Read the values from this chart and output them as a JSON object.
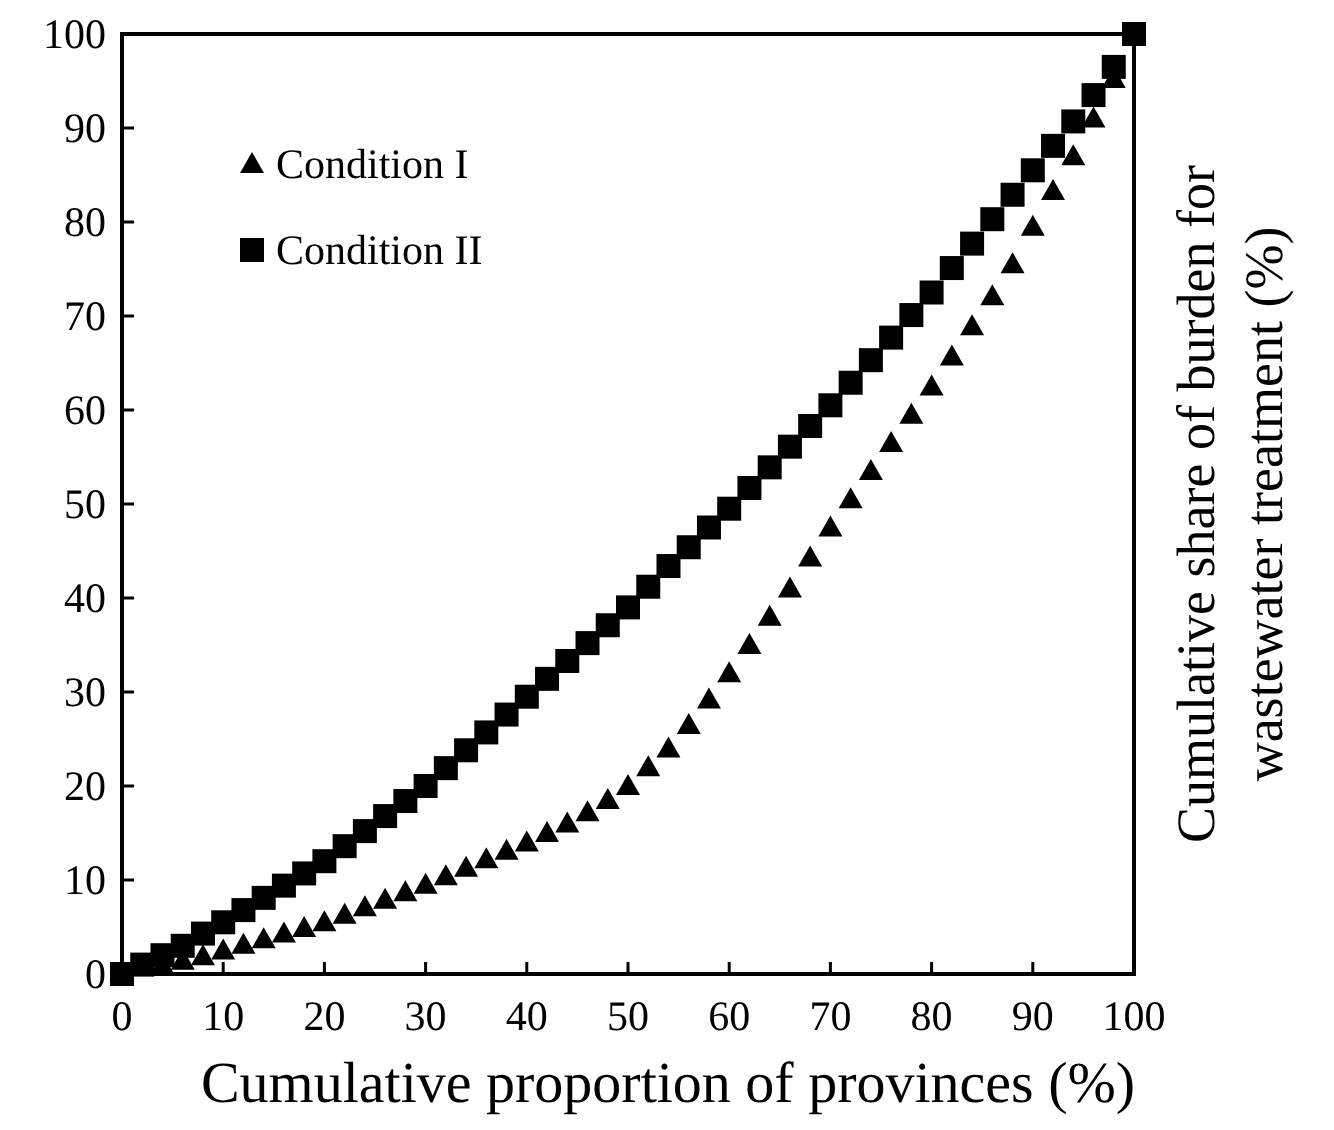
{
  "chart_data": {
    "type": "scatter",
    "xlabel": "Cumulative proportion  of provinces  (%)",
    "ylabel": "Cumulative share of burden for wastewater treatment  (%)",
    "xlim": [
      0,
      100
    ],
    "xticks": [
      0,
      10,
      20,
      30,
      40,
      50,
      60,
      70,
      80,
      90,
      100
    ],
    "ylim": [
      0,
      100
    ],
    "yticks": [
      0,
      10,
      20,
      30,
      40,
      50,
      60,
      70,
      80,
      90,
      100
    ],
    "grid": false,
    "legend": "top left",
    "x": [
      0,
      2,
      4,
      6,
      8,
      10,
      12,
      14,
      16,
      18,
      20,
      22,
      24,
      26,
      28,
      30,
      32,
      34,
      36,
      38,
      40,
      42,
      44,
      46,
      48,
      50,
      52,
      54,
      56,
      58,
      60,
      62,
      64,
      66,
      68,
      70,
      72,
      74,
      76,
      78,
      80,
      82,
      84,
      86,
      88,
      90,
      92,
      94,
      96,
      98,
      100
    ],
    "series": [
      {
        "name": "Condition I",
        "color": "#000000",
        "marker": "triangle",
        "values": [
          null,
          null,
          0.9,
          1.4,
          1.9,
          2.5,
          3.1,
          3.7,
          4.3,
          4.9,
          5.5,
          6.3,
          7.1,
          7.9,
          8.7,
          9.5,
          10.4,
          11.3,
          12.2,
          13.1,
          14,
          15,
          16,
          17.2,
          18.5,
          20,
          22,
          24,
          26.5,
          29.2,
          32,
          35,
          38,
          41,
          44.3,
          47.5,
          50.5,
          53.5,
          56.5,
          59.5,
          62.5,
          65.7,
          68.9,
          72.1,
          75.5,
          79.5,
          83.3,
          87,
          91,
          95.2,
          null
        ]
      },
      {
        "name": "Condition II",
        "color": "#000000",
        "marker": "square",
        "values": [
          0,
          1,
          2,
          3,
          4.3,
          5.5,
          6.8,
          8.1,
          9.4,
          10.7,
          12,
          13.6,
          15.2,
          16.8,
          18.4,
          20,
          21.9,
          23.8,
          25.7,
          27.6,
          29.5,
          31.4,
          33.3,
          35.2,
          37.1,
          39,
          41.2,
          43.4,
          45.4,
          47.5,
          49.5,
          51.7,
          53.9,
          56.1,
          58.3,
          60.5,
          62.9,
          65.3,
          67.7,
          70.1,
          72.5,
          75.1,
          77.7,
          80.3,
          82.9,
          85.5,
          88.1,
          90.7,
          93.5,
          96.5,
          100
        ]
      }
    ]
  }
}
